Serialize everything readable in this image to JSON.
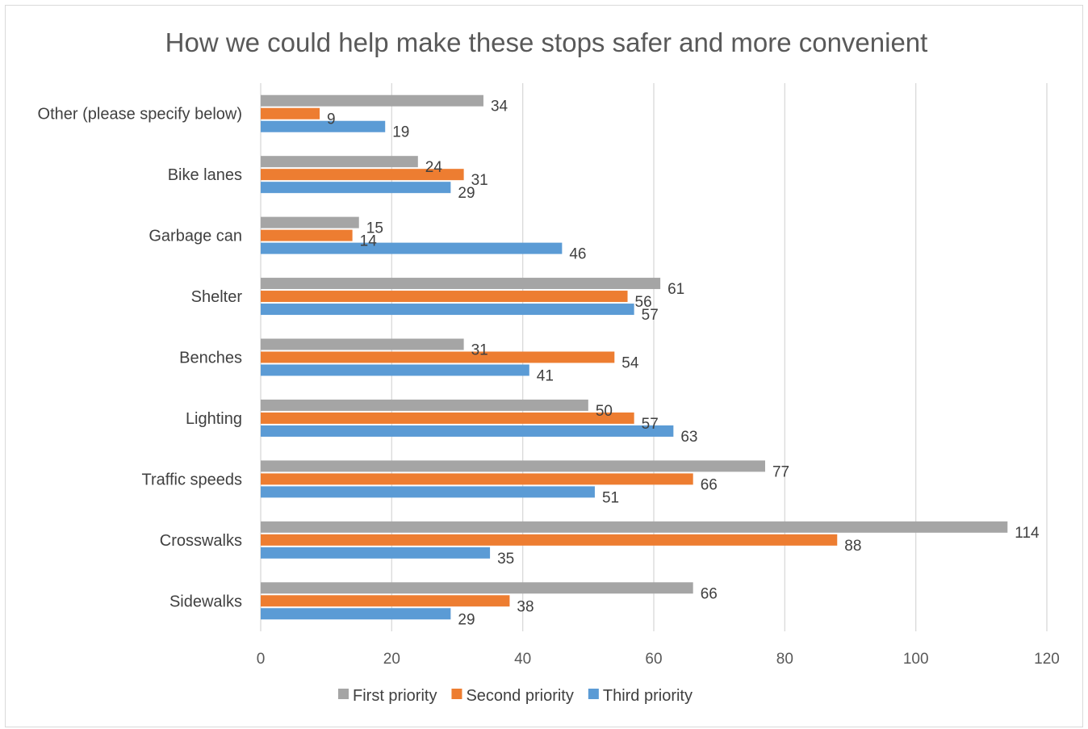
{
  "chart_data": {
    "type": "bar",
    "orientation": "horizontal",
    "title": "How we could help make these stops safer and more convenient",
    "categories": [
      "Sidewalks",
      "Crosswalks",
      "Traffic speeds",
      "Lighting",
      "Benches",
      "Shelter",
      "Garbage can",
      "Bike lanes",
      "Other (please specify below)"
    ],
    "series": [
      {
        "name": "First priority",
        "color": "#a5a5a5",
        "values": [
          66,
          114,
          77,
          50,
          31,
          61,
          15,
          24,
          34
        ]
      },
      {
        "name": "Second priority",
        "color": "#ed7d31",
        "values": [
          38,
          88,
          66,
          57,
          54,
          56,
          14,
          31,
          9
        ]
      },
      {
        "name": "Third priority",
        "color": "#5b9bd5",
        "values": [
          29,
          35,
          51,
          63,
          41,
          57,
          46,
          29,
          19
        ]
      }
    ],
    "xlim": [
      0,
      120
    ],
    "xticks": [
      0,
      20,
      40,
      60,
      80,
      100,
      120
    ],
    "grid": true,
    "legend_position": "bottom",
    "data_labels": true
  }
}
